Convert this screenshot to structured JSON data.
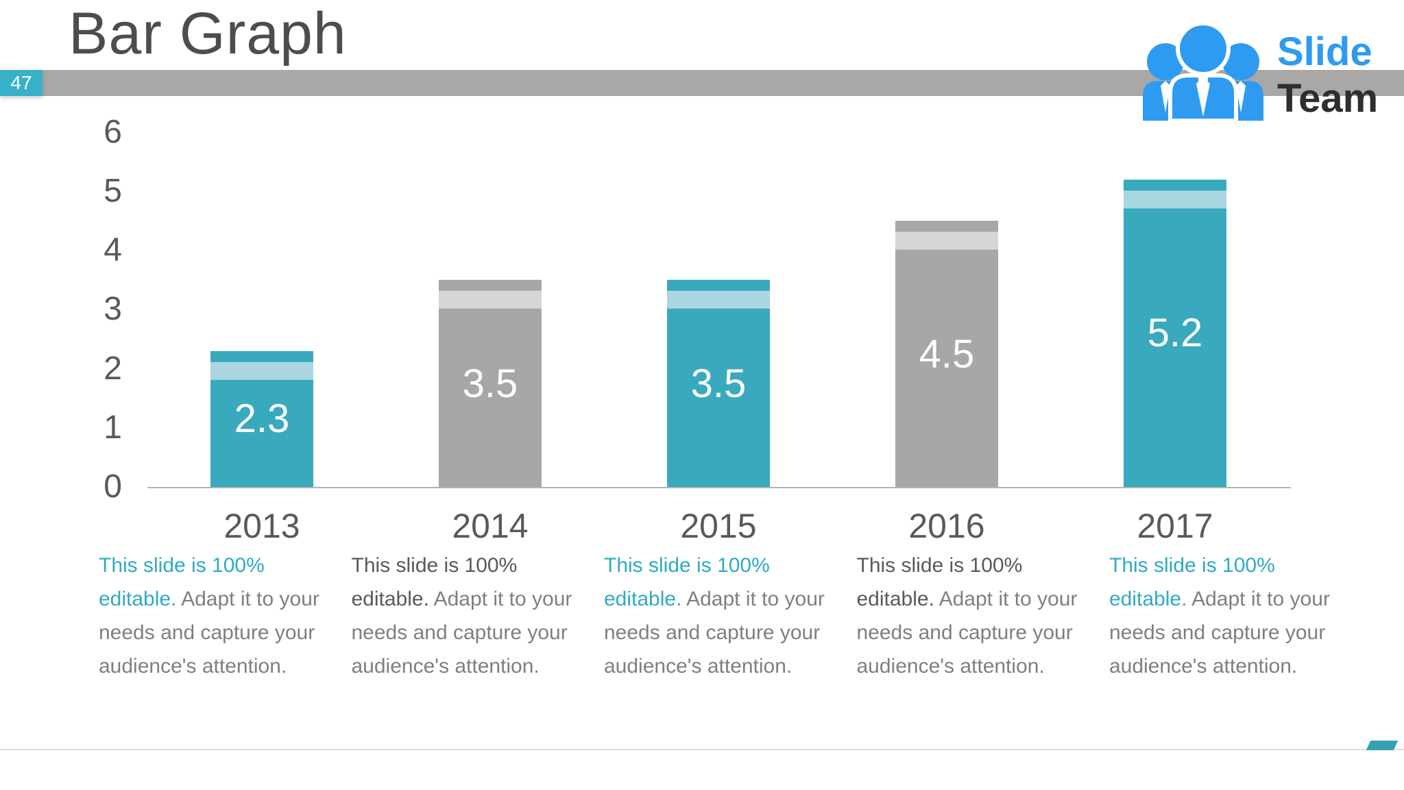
{
  "slide": {
    "title": "Bar Graph",
    "page_number": "47"
  },
  "logo": {
    "word1": "Slide",
    "word2": "Team",
    "icon": "people-group-icon"
  },
  "colors": {
    "teal_bar": "#39a9be",
    "teal_cap": "#a9d6e0",
    "gray_bar": "#a7a7a7",
    "gray_cap": "#d6d6d6",
    "header_bar": "#aaa7a7",
    "badge": "#38b1c8",
    "title_text": "#4d4d4d",
    "axis_text": "#595959",
    "caption_body_text": "#7f7f7f",
    "caption_lead_teal": "#2faac4",
    "caption_lead_dark": "#595959",
    "logo_blue": "#2e9bf0",
    "logo_dark": "#2e2e2e",
    "bar_value_text": "#ffffff"
  },
  "chart_data": {
    "type": "bar",
    "title": "Bar Graph",
    "categories": [
      "2013",
      "2014",
      "2015",
      "2016",
      "2017"
    ],
    "values": [
      2.3,
      3.5,
      3.5,
      4.5,
      5.2
    ],
    "data_labels": [
      "2.3",
      "3.5",
      "3.5",
      "4.5",
      "5.2"
    ],
    "bar_styles": [
      "teal",
      "gray",
      "teal",
      "gray",
      "teal"
    ],
    "yticks": [
      0,
      1,
      2,
      3,
      4,
      5,
      6
    ],
    "ylim": [
      0,
      6
    ],
    "xlabel": "",
    "ylabel": "",
    "grid": false,
    "legend": "none"
  },
  "captions": {
    "lead": "This slide is 100% editable.",
    "rest": "Adapt it to your needs and capture your audience's attention."
  }
}
